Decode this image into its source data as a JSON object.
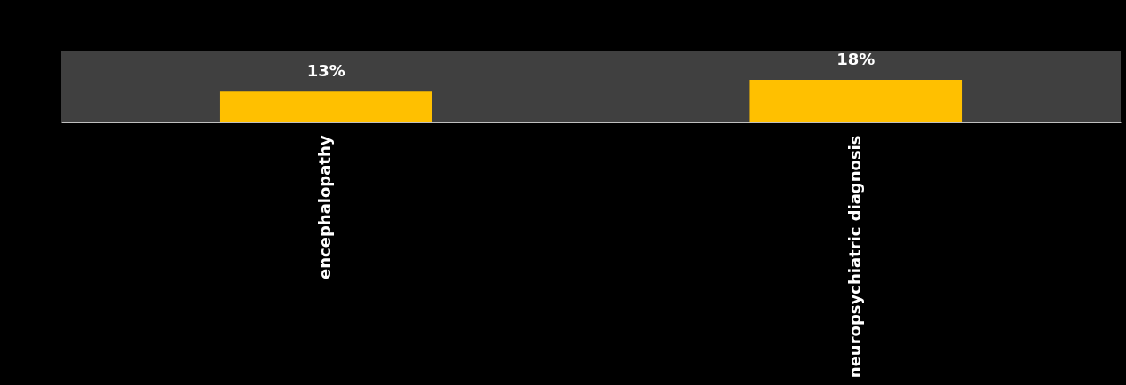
{
  "chart_data": {
    "type": "bar",
    "categories": [
      "encephalopathy",
      "neuropsychiatric diagnosis"
    ],
    "values": [
      13,
      18
    ],
    "color": "#ffc000",
    "value_labels": [
      "13%",
      "18%"
    ]
  }
}
